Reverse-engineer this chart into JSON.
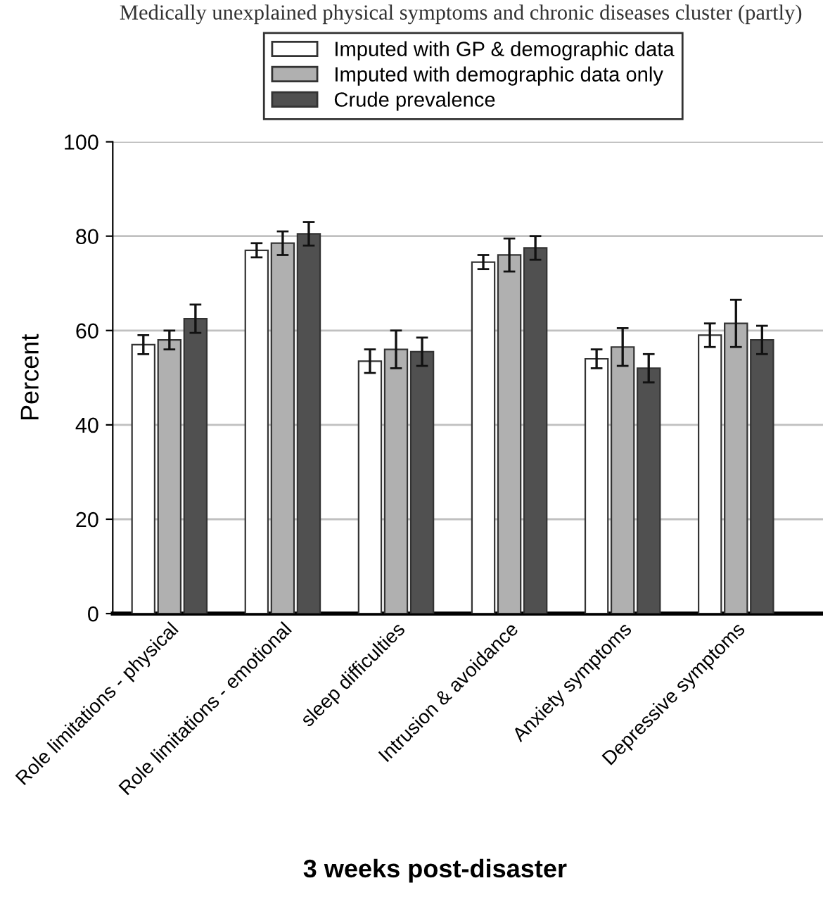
{
  "chart_data": {
    "type": "bar",
    "xlabel": "3 weeks post-disaster",
    "ylabel": "Percent",
    "annotations": [
      "Medically unexplained physical symptoms and chronic diseases cluster (partly)"
    ],
    "categories": [
      "Role limitations - physical",
      "Role limitations - emotional",
      "sleep difficulties",
      "Intrusion & avoidance",
      "Anxiety symptoms",
      "Depressive symptoms"
    ],
    "series": [
      {
        "name": "Imputed with GP & demographic data",
        "color": "#ffffff",
        "values": [
          57,
          77,
          53.5,
          74.5,
          54,
          59
        ],
        "errors": [
          2,
          1.5,
          2.5,
          1.5,
          2,
          2.5
        ]
      },
      {
        "name": "Imputed with demographic data only",
        "color": "#b0b0b0",
        "values": [
          58,
          78.5,
          56,
          76,
          56.5,
          61.5
        ],
        "errors": [
          2,
          2.5,
          4,
          3.5,
          4,
          5
        ]
      },
      {
        "name": "Crude prevalence",
        "color": "#505050",
        "values": [
          62.5,
          80.5,
          55.5,
          77.5,
          52,
          58
        ],
        "errors": [
          3,
          2.5,
          3,
          2.5,
          3,
          3
        ]
      }
    ],
    "ylim": [
      0,
      100
    ],
    "yticks": [
      0,
      20,
      40,
      60,
      80,
      100
    ],
    "grid": "y",
    "legend": "top"
  }
}
